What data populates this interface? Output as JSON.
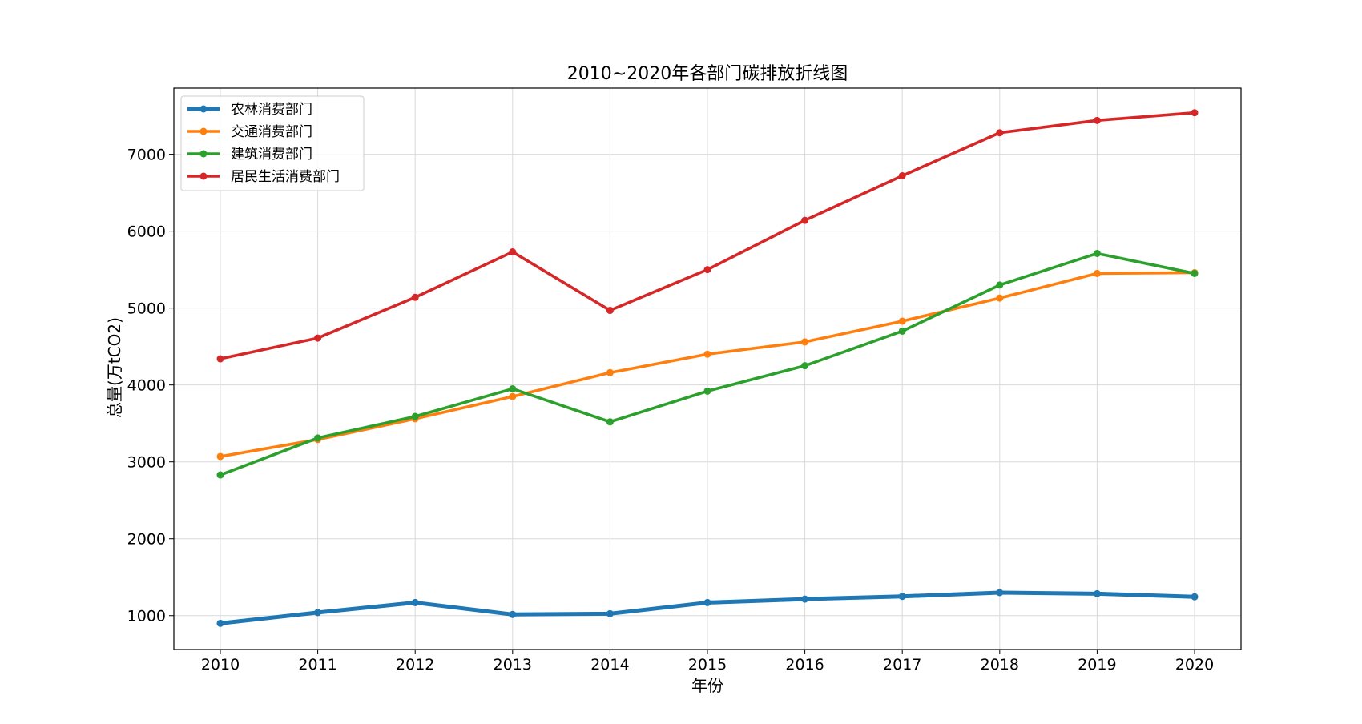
{
  "chart_data": {
    "type": "line",
    "title": "2010~2020年各部门碳排放折线图",
    "xlabel": "年份",
    "ylabel": "总量(万tCO2)",
    "categories": [
      "2010",
      "2011",
      "2012",
      "2013",
      "2014",
      "2015",
      "2016",
      "2017",
      "2018",
      "2019",
      "2020"
    ],
    "ylim": [
      560,
      7860
    ],
    "yticks": [
      1000,
      2000,
      3000,
      4000,
      5000,
      6000,
      7000
    ],
    "grid": true,
    "legend_position": "top-left",
    "series": [
      {
        "name": "农林消费部门",
        "color": "#1f77b4",
        "values": [
          900,
          1040,
          1170,
          1015,
          1025,
          1170,
          1215,
          1250,
          1300,
          1285,
          1245
        ]
      },
      {
        "name": "交通消费部门",
        "color": "#ff7f0e",
        "values": [
          3070,
          3290,
          3560,
          3850,
          4160,
          4400,
          4560,
          4830,
          5130,
          5450,
          5460
        ]
      },
      {
        "name": "建筑消费部门",
        "color": "#2ca02c",
        "values": [
          2830,
          3310,
          3590,
          3950,
          3520,
          3920,
          4250,
          4700,
          5300,
          5710,
          5450
        ]
      },
      {
        "name": "居民生活消费部门",
        "color": "#d62728",
        "values": [
          4340,
          4610,
          5140,
          5730,
          4970,
          5500,
          6140,
          6720,
          7280,
          7440,
          7540
        ]
      }
    ]
  }
}
